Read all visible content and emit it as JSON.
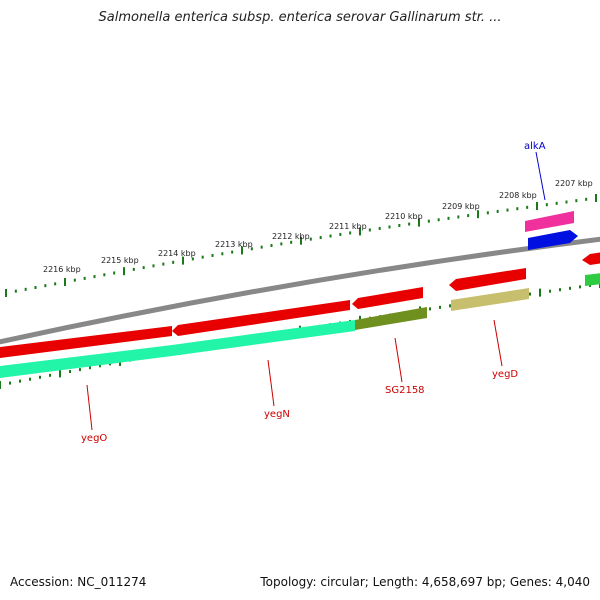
{
  "title": "Salmonella enterica subsp. enterica serovar Gallinarum str. ...",
  "footer": {
    "accession": "Accession: NC_011274",
    "topology": "Topology: circular; Length: 4,658,697 bp; Genes: 4,040"
  },
  "scale_labels": [
    "2216 kbp",
    "2215 kbp",
    "2214 kbp",
    "2213 kbp",
    "2212 kbp",
    "2211 kbp",
    "2210 kbp",
    "2209 kbp",
    "2208 kbp",
    "2207 kbp"
  ],
  "genes": [
    {
      "name": "alkA",
      "color": "#0000cc"
    },
    {
      "name": "SG2158",
      "color": "#cc0000"
    },
    {
      "name": "yegD",
      "color": "#cc0000"
    },
    {
      "name": "yegN",
      "color": "#cc0000"
    },
    {
      "name": "yegO",
      "color": "#cc0000"
    }
  ],
  "colors": {
    "backbone": "#8a8a8a",
    "forward_cds": "#e80000",
    "reverse_cds": "#22f5a8",
    "rna": "#f0309c",
    "regulator": "#0010e0",
    "olive": "#6f8f1e",
    "khaki": "#c8bf6e",
    "tick": "#1a7a1a"
  }
}
